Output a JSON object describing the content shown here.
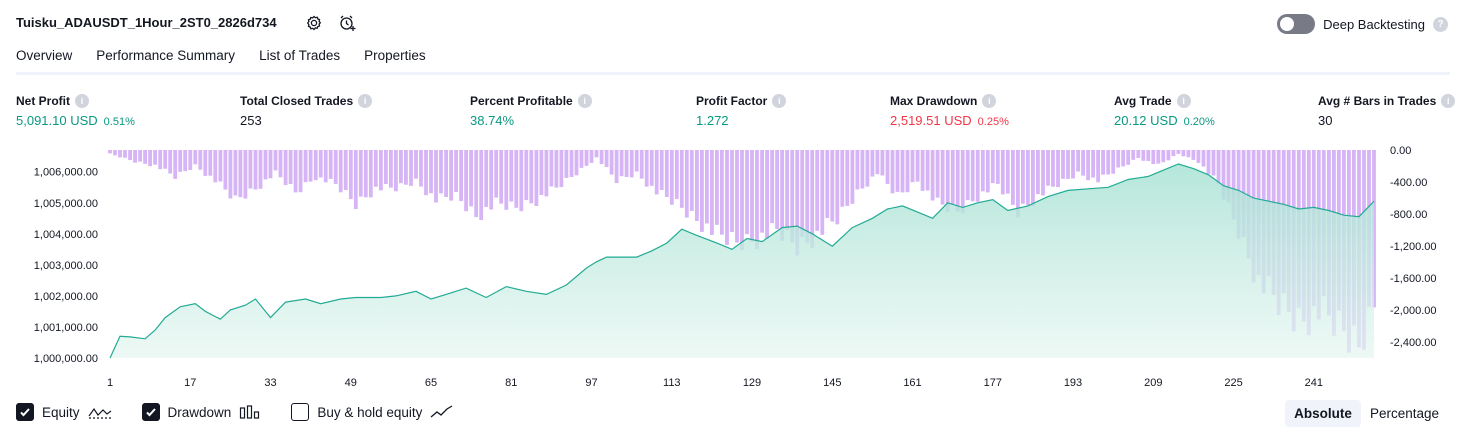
{
  "strategy_title": "Tuisku_ADAUSDT_1Hour_2ST0_2826d734",
  "icons": {
    "settings": "settings-icon",
    "alert": "add-alert-icon",
    "help": "help-icon",
    "info": "info-icon"
  },
  "deep_backtesting": {
    "label": "Deep Backtesting",
    "enabled": false
  },
  "tabs": [
    {
      "label": "Overview",
      "active": true
    },
    {
      "label": "Performance Summary",
      "active": false
    },
    {
      "label": "List of Trades",
      "active": false
    },
    {
      "label": "Properties",
      "active": false
    }
  ],
  "metrics": [
    {
      "label": "Net Profit",
      "value": "5,091.10 USD",
      "pct": "0.51%",
      "tone": "green"
    },
    {
      "label": "Total Closed Trades",
      "value": "253",
      "pct": "",
      "tone": "neutral"
    },
    {
      "label": "Percent Profitable",
      "value": "38.74%",
      "pct": "",
      "tone": "green"
    },
    {
      "label": "Profit Factor",
      "value": "1.272",
      "pct": "",
      "tone": "green"
    },
    {
      "label": "Max Drawdown",
      "value": "2,519.51 USD",
      "pct": "0.25%",
      "tone": "red"
    },
    {
      "label": "Avg Trade",
      "value": "20.12 USD",
      "pct": "0.20%",
      "tone": "green"
    },
    {
      "label": "Avg # Bars in Trades",
      "value": "30",
      "pct": "",
      "tone": "neutral"
    }
  ],
  "colors": {
    "equity_line": "#22ab94",
    "equity_fill": "#cdeee6",
    "drawdown": "#d6b4f5",
    "drawdown_overlap": "#a9a8e6",
    "positive": "#089981",
    "negative": "#f23645"
  },
  "chart_data": {
    "type": "area",
    "x_ticks": [
      "1",
      "17",
      "33",
      "49",
      "65",
      "81",
      "97",
      "113",
      "129",
      "145",
      "161",
      "177",
      "193",
      "209",
      "225",
      "241"
    ],
    "x_range": [
      1,
      253
    ],
    "left_axis_ticks": [
      "1,006,000.00",
      "1,005,000.00",
      "1,004,000.00",
      "1,003,000.00",
      "1,002,000.00",
      "1,001,000.00",
      "1,000,000.00"
    ],
    "left_ylim": [
      1000000,
      1006700
    ],
    "right_axis_ticks": [
      "0.00",
      "-400.00",
      "-800.00",
      "-1,200.00",
      "-1,600.00",
      "-2,000.00",
      "-2,400.00"
    ],
    "right_ylim": [
      -2600,
      0
    ],
    "series": [
      {
        "name": "Equity",
        "x": [
          1,
          3,
          5,
          8,
          10,
          12,
          15,
          18,
          20,
          23,
          25,
          28,
          30,
          33,
          36,
          40,
          43,
          47,
          50,
          55,
          58,
          62,
          65,
          68,
          72,
          76,
          80,
          84,
          88,
          92,
          96,
          98,
          100,
          103,
          106,
          109,
          112,
          115,
          118,
          122,
          125,
          128,
          131,
          135,
          138,
          141,
          145,
          149,
          153,
          156,
          159,
          162,
          165,
          168,
          171,
          174,
          177,
          180,
          184,
          188,
          192,
          196,
          200,
          204,
          208,
          211,
          214,
          217,
          220,
          223,
          226,
          229,
          232,
          235,
          238,
          241,
          244,
          247,
          250,
          253
        ],
        "values": [
          1000000,
          1000700,
          1000680,
          1000620,
          1000900,
          1001300,
          1001650,
          1001750,
          1001500,
          1001250,
          1001550,
          1001700,
          1001900,
          1001300,
          1001800,
          1001900,
          1001750,
          1001900,
          1001950,
          1001950,
          1002000,
          1002150,
          1001900,
          1002050,
          1002250,
          1001950,
          1002300,
          1002150,
          1002050,
          1002350,
          1002900,
          1003100,
          1003250,
          1003250,
          1003250,
          1003450,
          1003700,
          1004150,
          1003950,
          1003700,
          1003500,
          1003850,
          1003750,
          1004200,
          1004250,
          1004000,
          1003600,
          1004200,
          1004500,
          1004800,
          1004900,
          1004700,
          1004500,
          1005000,
          1004850,
          1005000,
          1005100,
          1004750,
          1004900,
          1005200,
          1005400,
          1005450,
          1005500,
          1005750,
          1005850,
          1006050,
          1006250,
          1006100,
          1005900,
          1005550,
          1005400,
          1005150,
          1005050,
          1004950,
          1004800,
          1004850,
          1004750,
          1004600,
          1004550,
          1005050
        ]
      },
      {
        "name": "Drawdown",
        "x": [
          1,
          6,
          10,
          14,
          18,
          22,
          26,
          30,
          34,
          38,
          42,
          46,
          50,
          54,
          58,
          62,
          66,
          70,
          74,
          78,
          82,
          86,
          90,
          94,
          98,
          102,
          106,
          110,
          114,
          118,
          122,
          126,
          130,
          134,
          138,
          142,
          146,
          150,
          154,
          158,
          162,
          166,
          170,
          174,
          178,
          182,
          186,
          190,
          194,
          198,
          202,
          206,
          210,
          214,
          218,
          222,
          226,
          230,
          234,
          238,
          242,
          246,
          250,
          253
        ],
        "values": [
          -50,
          -150,
          -200,
          -350,
          -200,
          -400,
          -650,
          -500,
          -300,
          -550,
          -350,
          -450,
          -700,
          -500,
          -500,
          -400,
          -650,
          -600,
          -850,
          -700,
          -750,
          -650,
          -500,
          -300,
          -100,
          -400,
          -300,
          -550,
          -700,
          -900,
          -1100,
          -1200,
          -1150,
          -1050,
          -1250,
          -1100,
          -900,
          -550,
          -300,
          -600,
          -400,
          -700,
          -800,
          -600,
          -450,
          -800,
          -600,
          -450,
          -300,
          -400,
          -250,
          -100,
          -200,
          -50,
          -150,
          -450,
          -1050,
          -1700,
          -2000,
          -2200,
          -2100,
          -2300,
          -2500,
          -1950
        ]
      }
    ]
  },
  "legend": [
    {
      "label": "Equity",
      "checked": true
    },
    {
      "label": "Drawdown",
      "checked": true
    },
    {
      "label": "Buy & hold equity",
      "checked": false
    }
  ],
  "view_modes": [
    {
      "label": "Absolute",
      "active": true
    },
    {
      "label": "Percentage",
      "active": false
    }
  ]
}
